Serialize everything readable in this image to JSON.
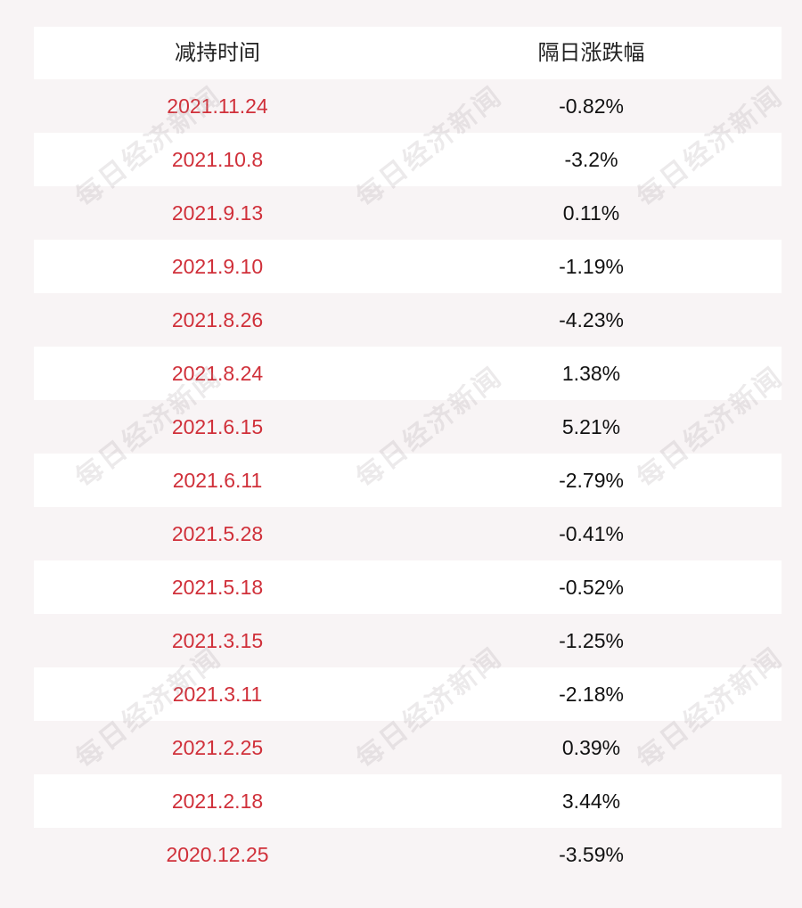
{
  "header": {
    "col1": "减持时间",
    "col2": "隔日涨跌幅"
  },
  "rows": [
    {
      "date": "2021.11.24",
      "change": "-0.82%"
    },
    {
      "date": "2021.10.8",
      "change": "-3.2%"
    },
    {
      "date": "2021.9.13",
      "change": "0.11%"
    },
    {
      "date": "2021.9.10",
      "change": "-1.19%"
    },
    {
      "date": "2021.8.26",
      "change": "-4.23%"
    },
    {
      "date": "2021.8.24",
      "change": "1.38%"
    },
    {
      "date": "2021.6.15",
      "change": "5.21%"
    },
    {
      "date": "2021.6.11",
      "change": "-2.79%"
    },
    {
      "date": "2021.5.28",
      "change": "-0.41%"
    },
    {
      "date": "2021.5.18",
      "change": "-0.52%"
    },
    {
      "date": "2021.3.15",
      "change": "-1.25%"
    },
    {
      "date": "2021.3.11",
      "change": "-2.18%"
    },
    {
      "date": "2021.2.25",
      "change": "0.39%"
    },
    {
      "date": "2021.2.18",
      "change": "3.44%"
    },
    {
      "date": "2020.12.25",
      "change": "-3.59%"
    }
  ],
  "watermark": {
    "text": "每日经济新闻"
  },
  "colors": {
    "date_text": "#d0303a",
    "value_text": "#111111",
    "row_white": "#ffffff",
    "row_shade": "#f8f4f5"
  }
}
